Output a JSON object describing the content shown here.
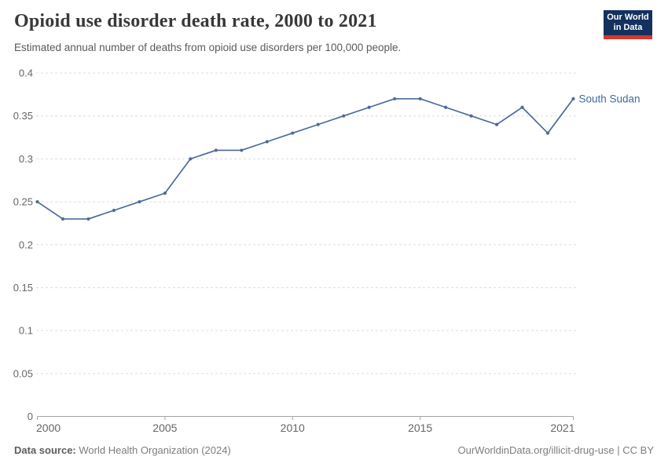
{
  "header": {
    "title": "Opioid use disorder death rate, 2000 to 2021",
    "subtitle": "Estimated annual number of deaths from opioid use disorders per 100,000 people.",
    "logo": {
      "line1": "Our World",
      "line2": "in Data",
      "bg_color": "#14315e",
      "bar_color": "#d6382d"
    }
  },
  "chart_data": {
    "type": "line",
    "title": "Opioid use disorder death rate, 2000 to 2021",
    "xlabel": "",
    "ylabel": "",
    "xlim": [
      2000,
      2021
    ],
    "ylim": [
      0,
      0.4
    ],
    "xticks": [
      2000,
      2005,
      2010,
      2015,
      2021
    ],
    "yticks": [
      0,
      0.05,
      0.1,
      0.15,
      0.2,
      0.25,
      0.3,
      0.35,
      0.4
    ],
    "grid": "horizontal-dashed",
    "legend_position": "end-of-line-label",
    "series": [
      {
        "name": "South Sudan",
        "color": "#4c6a9c",
        "label_color": "#3d6a9f",
        "x": [
          2000,
          2001,
          2002,
          2003,
          2004,
          2005,
          2006,
          2007,
          2008,
          2009,
          2010,
          2011,
          2012,
          2013,
          2014,
          2015,
          2016,
          2017,
          2018,
          2019,
          2020,
          2021
        ],
        "values": [
          0.25,
          0.23,
          0.23,
          0.24,
          0.25,
          0.26,
          0.3,
          0.31,
          0.31,
          0.32,
          0.33,
          0.34,
          0.35,
          0.36,
          0.37,
          0.37,
          0.36,
          0.35,
          0.34,
          0.36,
          0.33,
          0.37
        ]
      }
    ]
  },
  "footer": {
    "data_source_label": "Data source:",
    "data_source_value": "World Health Organization (2024)",
    "right_text": "OurWorldinData.org/illicit-drug-use | CC BY"
  },
  "colors": {
    "title": "#383838",
    "subtitle": "#5a5a5a",
    "axis_labels": "#666666",
    "gridline": "#dcdcdc",
    "axis_line": "#a3a3a3",
    "line": "#4c6a9c"
  }
}
